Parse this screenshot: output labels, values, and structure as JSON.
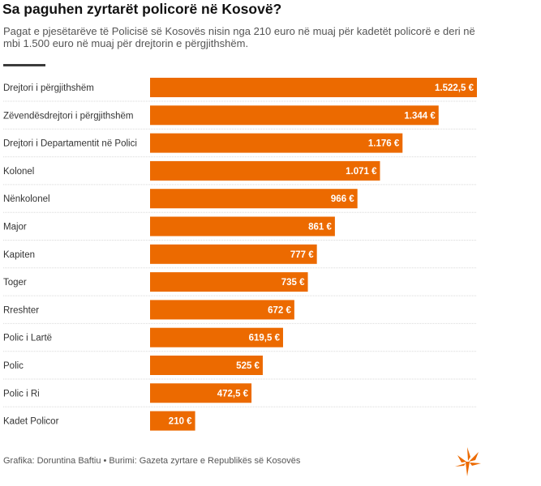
{
  "title": "Sa paguhen zyrtarët policorë në Kosovë?",
  "subtitle": "Pagat e pjesëtarëve të Policisë së Kosovës nisin nga 210 euro në muaj për kadetët policorë e deri në mbi 1.500 euro në muaj për drejtorin e përgjithshëm.",
  "source": "Grafika: Doruntina Baftiu • Burimi: Gazeta zyrtare e Republikës së Kosovës",
  "colors": {
    "bar": "#ec6a00",
    "divider": "#d9d9d9",
    "logo": "#ec6a00"
  },
  "chart_data": {
    "type": "bar",
    "orientation": "horizontal",
    "categories": [
      "Drejtori i përgjithshëm",
      "Zëvendësdrejtori i përgjithshëm",
      "Drejtori i Departamentit në Polici",
      "Kolonel",
      "Nënkolonel",
      "Major",
      "Kapiten",
      "Toger",
      "Rreshter",
      "Polic i Lartë",
      "Polic",
      "Polic i Ri",
      "Kadet Policor"
    ],
    "values": [
      1522.5,
      1344,
      1176,
      1071,
      966,
      861,
      777,
      735,
      672,
      619.5,
      525,
      472.5,
      210
    ],
    "labels": [
      "1.522,5 €",
      "1.344 €",
      "1.176 €",
      "1.071 €",
      "966 €",
      "861 €",
      "777 €",
      "735 €",
      "672 €",
      "619,5 €",
      "525 €",
      "472,5 €",
      "210 €"
    ],
    "xlim": [
      0,
      1522.5
    ],
    "unit": "€",
    "grid": false,
    "axes_visible": false
  }
}
